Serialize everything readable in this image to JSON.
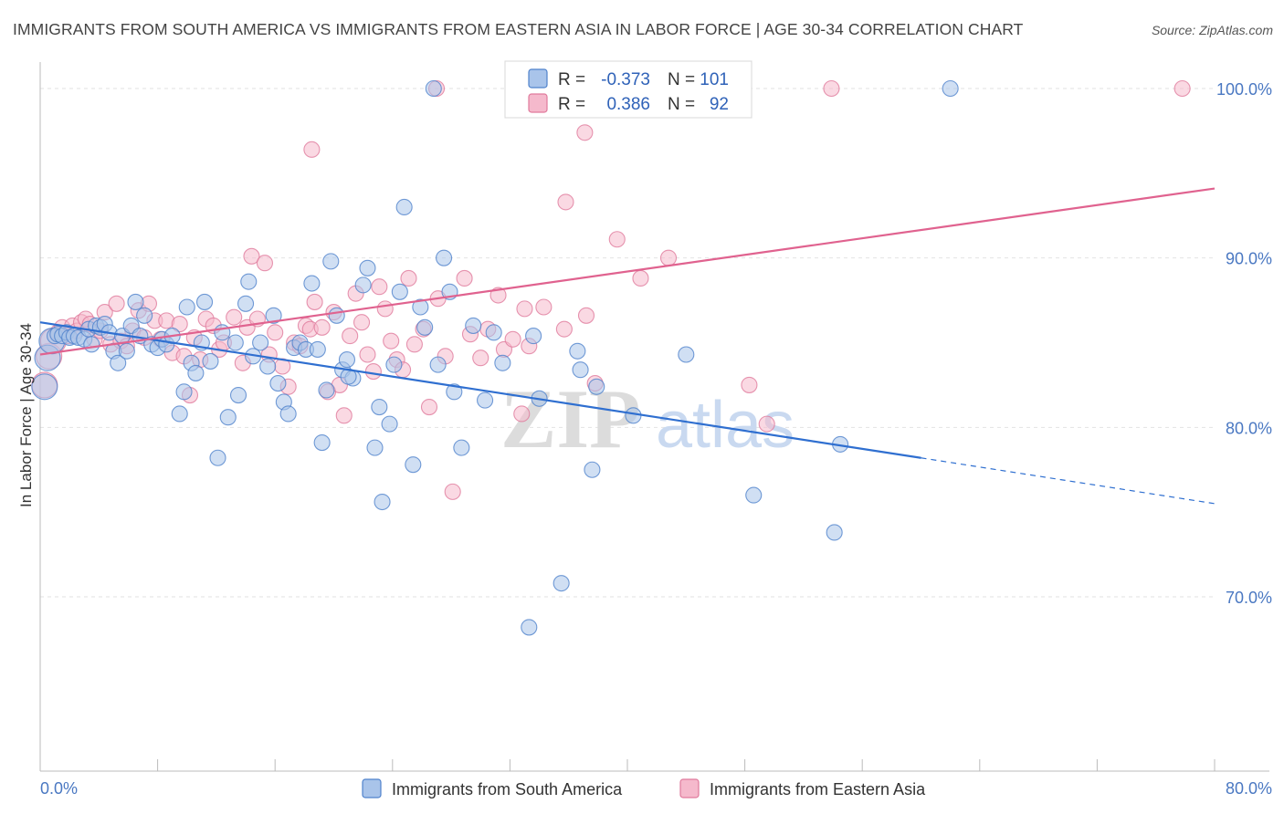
{
  "title": "IMMIGRANTS FROM SOUTH AMERICA VS IMMIGRANTS FROM EASTERN ASIA IN LABOR FORCE | AGE 30-34 CORRELATION CHART",
  "source": "Source: ZipAtlas.com",
  "watermark": {
    "zip": "ZIP",
    "atlas": "atlas"
  },
  "colors": {
    "blue_fill": "#a9c4ea",
    "blue_stroke": "#4f82cc",
    "blue_line": "#2f6fd0",
    "pink_fill": "#f5b9cc",
    "pink_stroke": "#e07a9c",
    "pink_line": "#e0628f",
    "tick_text": "#4a78c2",
    "grid": "#e2e2e2"
  },
  "legend": {
    "r_label": "R =",
    "n_label": "N =",
    "rows": [
      {
        "r": "-0.373",
        "n": "101"
      },
      {
        "r": "0.386",
        "n": "92"
      }
    ]
  },
  "chart_data": {
    "type": "scatter",
    "title": "IMMIGRANTS FROM SOUTH AMERICA VS IMMIGRANTS FROM EASTERN ASIA IN LABOR FORCE | AGE 30-34 CORRELATION CHART",
    "xlabel": "",
    "ylabel": "In Labor Force | Age 30-34",
    "xlim": [
      0,
      80
    ],
    "ylim": [
      60,
      100
    ],
    "x_tick_labels": [
      "0.0%",
      "80.0%"
    ],
    "y_ticks": [
      70,
      80,
      90,
      100
    ],
    "y_tick_labels": [
      "70.0%",
      "80.0%",
      "90.0%",
      "100.0%"
    ],
    "grid": "horizontal dashed",
    "legend_position": "top-center",
    "series": [
      {
        "name": "Immigrants from South America",
        "r": -0.373,
        "n": 101,
        "trend": {
          "x0": 0,
          "y0": 86.2,
          "x1": 60,
          "y1": 78.2,
          "dashed_to_x": 80,
          "dashed_to_y": 75.5
        },
        "points": [
          [
            0.3,
            82.4
          ],
          [
            0.5,
            84.1
          ],
          [
            0.8,
            85.1
          ],
          [
            1.0,
            85.4
          ],
          [
            1.2,
            85.5
          ],
          [
            1.5,
            85.4
          ],
          [
            1.8,
            85.6
          ],
          [
            2.0,
            85.3
          ],
          [
            2.3,
            85.4
          ],
          [
            2.6,
            85.3
          ],
          [
            3.0,
            85.2
          ],
          [
            3.3,
            85.8
          ],
          [
            3.5,
            84.9
          ],
          [
            3.8,
            86.0
          ],
          [
            4.1,
            85.9
          ],
          [
            4.4,
            86.1
          ],
          [
            4.7,
            85.6
          ],
          [
            5.0,
            84.5
          ],
          [
            5.3,
            83.8
          ],
          [
            5.6,
            85.4
          ],
          [
            5.9,
            84.5
          ],
          [
            6.2,
            86.0
          ],
          [
            6.5,
            87.4
          ],
          [
            6.8,
            85.4
          ],
          [
            7.1,
            86.6
          ],
          [
            7.6,
            84.9
          ],
          [
            8.0,
            84.7
          ],
          [
            8.3,
            85.2
          ],
          [
            8.6,
            84.9
          ],
          [
            9.0,
            85.4
          ],
          [
            9.5,
            80.8
          ],
          [
            9.8,
            82.1
          ],
          [
            10.0,
            87.1
          ],
          [
            10.3,
            83.8
          ],
          [
            10.6,
            83.2
          ],
          [
            11.0,
            85.0
          ],
          [
            11.2,
            87.4
          ],
          [
            11.6,
            83.9
          ],
          [
            12.1,
            78.2
          ],
          [
            12.4,
            85.6
          ],
          [
            12.8,
            80.6
          ],
          [
            13.3,
            85.0
          ],
          [
            13.5,
            81.9
          ],
          [
            14.0,
            87.3
          ],
          [
            14.2,
            88.6
          ],
          [
            15.0,
            85.0
          ],
          [
            15.5,
            83.6
          ],
          [
            15.9,
            86.6
          ],
          [
            16.2,
            82.6
          ],
          [
            16.6,
            81.5
          ],
          [
            16.9,
            80.8
          ],
          [
            17.3,
            84.7
          ],
          [
            17.7,
            85.0
          ],
          [
            18.1,
            84.6
          ],
          [
            18.5,
            88.5
          ],
          [
            18.9,
            84.6
          ],
          [
            19.2,
            79.1
          ],
          [
            19.5,
            82.2
          ],
          [
            19.8,
            89.8
          ],
          [
            20.2,
            86.6
          ],
          [
            20.6,
            83.4
          ],
          [
            20.9,
            84.0
          ],
          [
            21.3,
            82.9
          ],
          [
            22.0,
            88.4
          ],
          [
            22.3,
            89.4
          ],
          [
            22.8,
            78.8
          ],
          [
            23.1,
            81.2
          ],
          [
            23.3,
            75.6
          ],
          [
            23.8,
            80.2
          ],
          [
            24.1,
            83.7
          ],
          [
            24.5,
            88.0
          ],
          [
            24.8,
            93.0
          ],
          [
            25.4,
            77.8
          ],
          [
            25.9,
            87.1
          ],
          [
            26.2,
            85.9
          ],
          [
            27.1,
            83.7
          ],
          [
            27.5,
            90.0
          ],
          [
            27.9,
            88.0
          ],
          [
            28.2,
            82.1
          ],
          [
            28.7,
            78.8
          ],
          [
            29.5,
            86.0
          ],
          [
            30.3,
            81.6
          ],
          [
            30.9,
            85.6
          ],
          [
            31.5,
            83.8
          ],
          [
            33.3,
            68.2
          ],
          [
            33.6,
            85.4
          ],
          [
            34.0,
            81.7
          ],
          [
            35.5,
            70.8
          ],
          [
            36.6,
            84.5
          ],
          [
            36.8,
            83.4
          ],
          [
            37.6,
            77.5
          ],
          [
            37.9,
            82.4
          ],
          [
            40.4,
            80.7
          ],
          [
            44.0,
            84.3
          ],
          [
            48.6,
            76.0
          ],
          [
            54.1,
            73.8
          ],
          [
            54.5,
            79.0
          ],
          [
            62.0,
            100.0
          ],
          [
            26.8,
            100.0
          ],
          [
            21.0,
            83.0
          ],
          [
            14.5,
            84.2
          ]
        ]
      },
      {
        "name": "Immigrants from Eastern Asia",
        "r": 0.386,
        "n": 92,
        "trend": {
          "x0": 0,
          "y0": 84.3,
          "x1": 80,
          "y1": 94.1
        },
        "points": [
          [
            0.3,
            82.5
          ],
          [
            0.6,
            84.2
          ],
          [
            0.9,
            85.1
          ],
          [
            1.2,
            85.6
          ],
          [
            1.5,
            85.9
          ],
          [
            1.9,
            85.4
          ],
          [
            2.2,
            86.0
          ],
          [
            2.5,
            85.7
          ],
          [
            2.8,
            86.2
          ],
          [
            3.1,
            86.4
          ],
          [
            3.4,
            86.1
          ],
          [
            3.7,
            85.2
          ],
          [
            4.1,
            85.7
          ],
          [
            4.4,
            86.8
          ],
          [
            4.8,
            84.9
          ],
          [
            5.2,
            87.3
          ],
          [
            5.5,
            85.1
          ],
          [
            5.9,
            84.8
          ],
          [
            6.3,
            85.7
          ],
          [
            6.7,
            86.9
          ],
          [
            7.1,
            85.3
          ],
          [
            7.4,
            87.3
          ],
          [
            7.8,
            86.3
          ],
          [
            8.2,
            85.2
          ],
          [
            8.6,
            86.3
          ],
          [
            9.0,
            84.4
          ],
          [
            9.5,
            86.1
          ],
          [
            9.8,
            84.2
          ],
          [
            10.2,
            81.9
          ],
          [
            10.5,
            85.3
          ],
          [
            10.9,
            84.0
          ],
          [
            11.3,
            86.4
          ],
          [
            11.8,
            86.0
          ],
          [
            12.2,
            84.6
          ],
          [
            12.5,
            85.0
          ],
          [
            13.2,
            86.5
          ],
          [
            13.8,
            83.8
          ],
          [
            14.1,
            85.9
          ],
          [
            14.4,
            90.1
          ],
          [
            14.8,
            86.4
          ],
          [
            15.3,
            89.7
          ],
          [
            15.6,
            84.3
          ],
          [
            16.0,
            85.6
          ],
          [
            16.5,
            83.6
          ],
          [
            16.9,
            82.4
          ],
          [
            17.3,
            85.0
          ],
          [
            17.7,
            84.8
          ],
          [
            18.1,
            86.0
          ],
          [
            18.4,
            85.8
          ],
          [
            18.7,
            87.4
          ],
          [
            19.2,
            85.9
          ],
          [
            19.6,
            82.1
          ],
          [
            20.0,
            86.8
          ],
          [
            20.4,
            82.5
          ],
          [
            20.7,
            80.7
          ],
          [
            21.1,
            85.4
          ],
          [
            21.5,
            87.9
          ],
          [
            21.9,
            86.2
          ],
          [
            22.3,
            84.3
          ],
          [
            22.7,
            83.3
          ],
          [
            23.1,
            88.3
          ],
          [
            23.5,
            87.0
          ],
          [
            23.9,
            85.1
          ],
          [
            24.3,
            84.0
          ],
          [
            24.7,
            83.4
          ],
          [
            25.1,
            88.8
          ],
          [
            25.5,
            84.9
          ],
          [
            26.1,
            85.8
          ],
          [
            26.5,
            81.2
          ],
          [
            27.1,
            87.6
          ],
          [
            27.6,
            84.2
          ],
          [
            28.1,
            76.2
          ],
          [
            28.9,
            88.8
          ],
          [
            29.3,
            85.5
          ],
          [
            30.0,
            84.1
          ],
          [
            30.5,
            85.8
          ],
          [
            31.2,
            87.8
          ],
          [
            31.6,
            84.6
          ],
          [
            32.2,
            85.2
          ],
          [
            33.0,
            87.0
          ],
          [
            33.3,
            84.8
          ],
          [
            34.3,
            87.1
          ],
          [
            35.7,
            85.8
          ],
          [
            37.2,
            86.6
          ],
          [
            37.8,
            82.6
          ],
          [
            39.3,
            91.1
          ],
          [
            40.9,
            88.8
          ],
          [
            42.8,
            90.0
          ],
          [
            48.3,
            82.5
          ],
          [
            49.5,
            80.2
          ],
          [
            32.8,
            80.8
          ],
          [
            35.8,
            93.3
          ]
        ]
      }
    ],
    "extra_points_top": {
      "South America": [
        [
          0,
          0
        ]
      ],
      "Eastern Asia": [
        [
          27.0,
          100.0
        ],
        [
          37.1,
          97.4
        ],
        [
          36.8,
          100.0
        ],
        [
          18.5,
          96.4
        ],
        [
          53.9,
          100.0
        ],
        [
          77.8,
          100.0
        ]
      ]
    }
  },
  "bottom_legend": [
    {
      "label": "Immigrants from South America"
    },
    {
      "label": "Immigrants from Eastern Asia"
    }
  ]
}
